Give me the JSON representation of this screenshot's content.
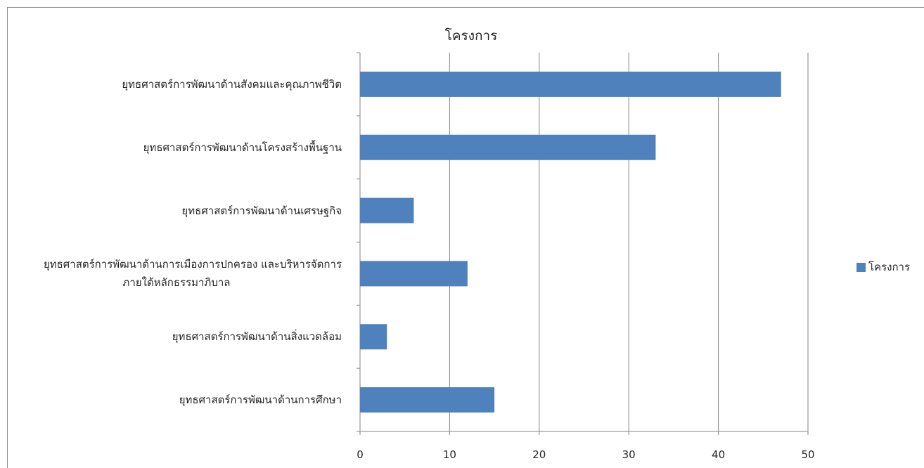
{
  "chart_data": {
    "type": "bar",
    "orientation": "horizontal",
    "title": "โครงการ",
    "categories": [
      "ยุทธศาสตร์การพัฒนาด้านสังคมและคุณภาพชีวิต",
      "ยุทธศาสตร์การพัฒนาด้านโครงสร้างพื้นฐาน",
      "ยุทธศาสตร์การพัฒนาด้านเศรษฐกิจ",
      "ยุทธศาสตร์การพัฒนาด้านการเมืองการปกครอง และบริหารจัดการภายใต้หลักธรรมาภิบาล",
      "ยุทธศาสตร์การพัฒนาด้านสิ่งแวดล้อม",
      "ยุทธศาสตร์การพัฒนาด้านการศึกษา"
    ],
    "category_lines": [
      [
        "ยุทธศาสตร์การพัฒนาด้านสังคมและคุณภาพชีวิต"
      ],
      [
        "ยุทธศาสตร์การพัฒนาด้านโครงสร้างพื้นฐาน"
      ],
      [
        "ยุทธศาสตร์การพัฒนาด้านเศรษฐกิจ"
      ],
      [
        "ยุทธศาสตร์การพัฒนาด้านการเมืองการปกครอง และบริหารจัดการ",
        "ภายใต้หลักธรรมาภิบาล"
      ],
      [
        "ยุทธศาสตร์การพัฒนาด้านสิ่งแวดล้อม"
      ],
      [
        "ยุทธศาสตร์การพัฒนาด้านการศึกษา"
      ]
    ],
    "series": [
      {
        "name": "โครงการ",
        "values": [
          47,
          33,
          6,
          12,
          3,
          15
        ],
        "color": "#4f81bd"
      }
    ],
    "xlim": [
      0,
      50
    ],
    "xticks": [
      0,
      10,
      20,
      30,
      40,
      50
    ],
    "grid": "vertical",
    "legend": "right"
  }
}
